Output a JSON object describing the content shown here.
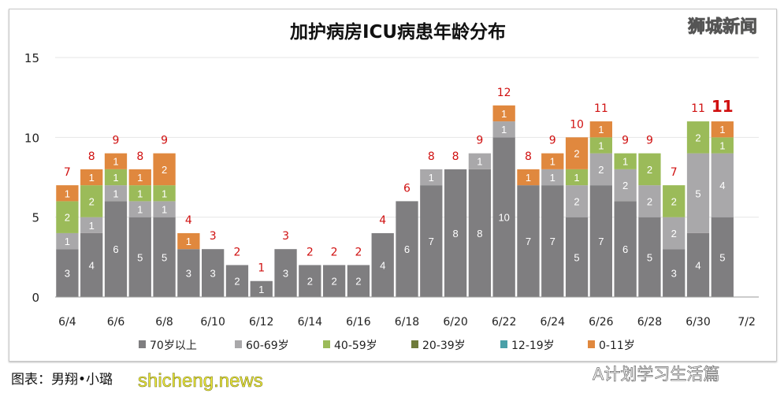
{
  "brand": "狮城新闻",
  "credit": "图表：男翔•小璐",
  "watermarks": [
    "shicheng.news",
    "A计划学习生活篇"
  ],
  "chart_data": {
    "type": "bar",
    "stacked": true,
    "title": "加护病房ICU病患年龄分布",
    "xlabel": "",
    "ylabel": "",
    "ylim": [
      0,
      15
    ],
    "yticks": [
      0,
      5,
      10,
      15
    ],
    "grid": true,
    "legend_position": "bottom",
    "categories": [
      "6/4",
      "6/5",
      "6/6",
      "6/7",
      "6/8",
      "6/9",
      "6/10",
      "6/11",
      "6/12",
      "6/13",
      "6/14",
      "6/15",
      "6/16",
      "6/17",
      "6/18",
      "6/19",
      "6/20",
      "6/21",
      "6/22",
      "6/23",
      "6/24",
      "6/25",
      "6/26",
      "6/27",
      "6/28",
      "6/29",
      "6/30",
      "7/1",
      "7/2"
    ],
    "xtick_labels": [
      "6/4",
      "6/6",
      "6/8",
      "6/10",
      "6/12",
      "6/14",
      "6/16",
      "6/18",
      "6/20",
      "6/22",
      "6/24",
      "6/26",
      "6/28",
      "6/30",
      "7/2"
    ],
    "series": [
      {
        "name": "70岁以上",
        "color": "#7f7e80",
        "values": [
          3,
          4,
          6,
          5,
          5,
          3,
          3,
          2,
          1,
          3,
          2,
          2,
          2,
          4,
          6,
          7,
          8,
          8,
          10,
          7,
          7,
          5,
          7,
          6,
          5,
          3,
          4,
          5,
          0
        ]
      },
      {
        "name": "60-69岁",
        "color": "#a9a8aa",
        "values": [
          1,
          1,
          1,
          1,
          1,
          0,
          0,
          0,
          0,
          0,
          0,
          0,
          0,
          0,
          0,
          1,
          0,
          1,
          1,
          0,
          1,
          2,
          2,
          2,
          2,
          2,
          5,
          4,
          0
        ]
      },
      {
        "name": "40-59岁",
        "color": "#9bbb59",
        "values": [
          2,
          2,
          1,
          1,
          1,
          0,
          0,
          0,
          0,
          0,
          0,
          0,
          0,
          0,
          0,
          0,
          0,
          0,
          0,
          0,
          0,
          1,
          1,
          1,
          2,
          2,
          2,
          1,
          0
        ]
      },
      {
        "name": "20-39岁",
        "color": "#6e7b3a",
        "values": [
          0,
          0,
          0,
          0,
          0,
          0,
          0,
          0,
          0,
          0,
          0,
          0,
          0,
          0,
          0,
          0,
          0,
          0,
          0,
          0,
          0,
          0,
          0,
          0,
          0,
          0,
          0,
          0,
          0
        ]
      },
      {
        "name": "12-19岁",
        "color": "#4aa0a8",
        "values": [
          0,
          0,
          0,
          0,
          0,
          0,
          0,
          0,
          0,
          0,
          0,
          0,
          0,
          0,
          0,
          0,
          0,
          0,
          0,
          0,
          0,
          0,
          0,
          0,
          0,
          0,
          0,
          0,
          0
        ]
      },
      {
        "name": "0-11岁",
        "color": "#e0883e",
        "values": [
          1,
          1,
          1,
          1,
          2,
          1,
          0,
          0,
          0,
          0,
          0,
          0,
          0,
          0,
          0,
          0,
          0,
          0,
          1,
          1,
          1,
          2,
          1,
          0,
          0,
          0,
          0,
          1,
          0
        ]
      }
    ],
    "totals": [
      7,
      8,
      9,
      8,
      9,
      4,
      3,
      2,
      1,
      3,
      2,
      2,
      2,
      4,
      6,
      8,
      8,
      9,
      12,
      8,
      9,
      10,
      11,
      9,
      9,
      7,
      11,
      11,
      null
    ],
    "total_label_color": "#d01010"
  }
}
